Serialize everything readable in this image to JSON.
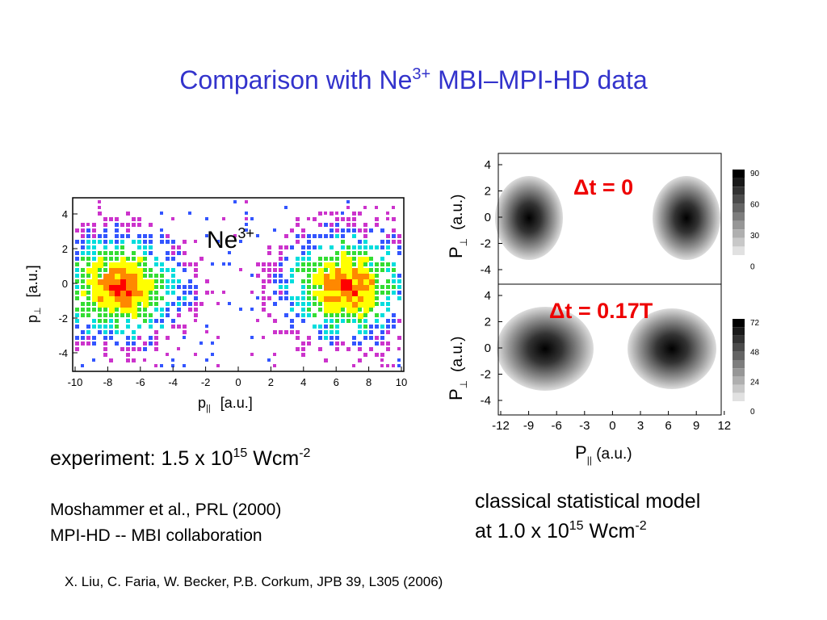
{
  "title": {
    "main": "Comparison with Ne",
    "sup": "3+",
    "rest": " MBI–MPI-HD data"
  },
  "left_plot": {
    "label": "Ne",
    "label_sup": "3+",
    "x_ticks": [
      "-10",
      "-8",
      "-6",
      "-4",
      "-2",
      "0",
      "2",
      "4",
      "6",
      "8",
      "10"
    ],
    "y_ticks": [
      "4",
      "2",
      "0",
      "-2",
      "-4"
    ],
    "x_axis": "p",
    "x_sub": "||",
    "x_unit": "[a.u.]",
    "y_axis": "p",
    "y_sub": "⊥",
    "y_unit": "[a.u.]"
  },
  "right_plot": {
    "top_annotation": "Δt = 0",
    "bottom_annotation": "Δt = 0.17T",
    "x_ticks": [
      "-12",
      "-9",
      "-6",
      "-3",
      "0",
      "3",
      "6",
      "9",
      "12"
    ],
    "y_ticks": [
      "4",
      "2",
      "0",
      "-2",
      "-4"
    ],
    "top_colorbar": [
      "90",
      "60",
      "30",
      "0"
    ],
    "bottom_colorbar": [
      "72",
      "48",
      "24",
      "0"
    ],
    "x_axis": "P",
    "x_sub": "||",
    "x_unit": " (a.u.)",
    "y_axis": "P",
    "y_sub": "⊥",
    "y_unit": "(a.u.)"
  },
  "experiment": {
    "text": "experiment: 1.5 x 10",
    "exp": "15",
    "unit": " Wcm",
    "unit_exp": "-2"
  },
  "credits": [
    "Moshammer et al., PRL (2000)",
    "MPI-HD -- MBI collaboration"
  ],
  "model": {
    "line1": "classical statistical model",
    "text": "at 1.0 x 10",
    "exp": "15",
    "unit": " Wcm",
    "unit_exp": "-2"
  },
  "reference": "X. Liu, C. Faria, W. Becker, P.B. Corkum, JPB 39, L305 (2006)"
}
